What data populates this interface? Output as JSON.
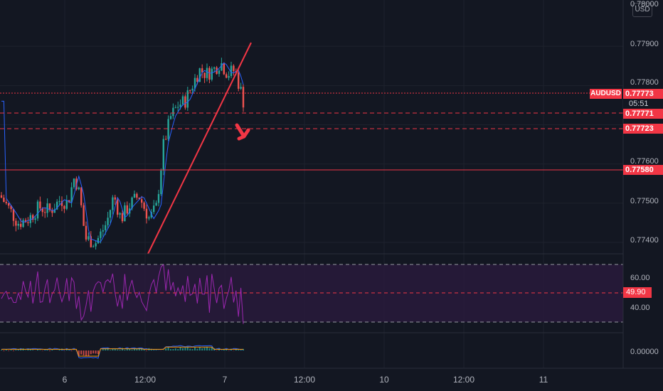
{
  "chart": {
    "symbol": "AUDUSD",
    "currency": "USD",
    "countdown": "05:51",
    "price_axis": {
      "ticks": [
        "0.78000",
        "0.77900",
        "0.77800",
        "0.77600",
        "0.77500",
        "0.77400"
      ],
      "min": 0.7735,
      "max": 0.78
    },
    "price_badges": {
      "current": "0.77773",
      "level_1": "0.77771",
      "level_2": "0.77723",
      "level_3": "0.77580"
    },
    "levels": [
      0.77773,
      0.77771,
      0.77723,
      0.7758
    ],
    "rsi": {
      "ticks": [
        "60.00",
        "40.00"
      ],
      "current": "49.90",
      "upper_band": 70,
      "lower_band": 30
    },
    "macd": {
      "ticks": [
        "0.00000"
      ]
    },
    "time_axis": [
      "6",
      "12:00",
      "7",
      "12:00",
      "10",
      "12:00",
      "11"
    ],
    "colors": {
      "background": "#131722",
      "up": "#26a69a",
      "down": "#ef5350",
      "level": "#f23645",
      "ma": "#2962ff",
      "rsi_line": "#9c27b0",
      "rsi_band": "#2a1a3d",
      "arrow": "#f23645"
    },
    "annotations": {
      "trend_line": "ascending-trendline",
      "arrow": "down-arrow-icon"
    }
  }
}
